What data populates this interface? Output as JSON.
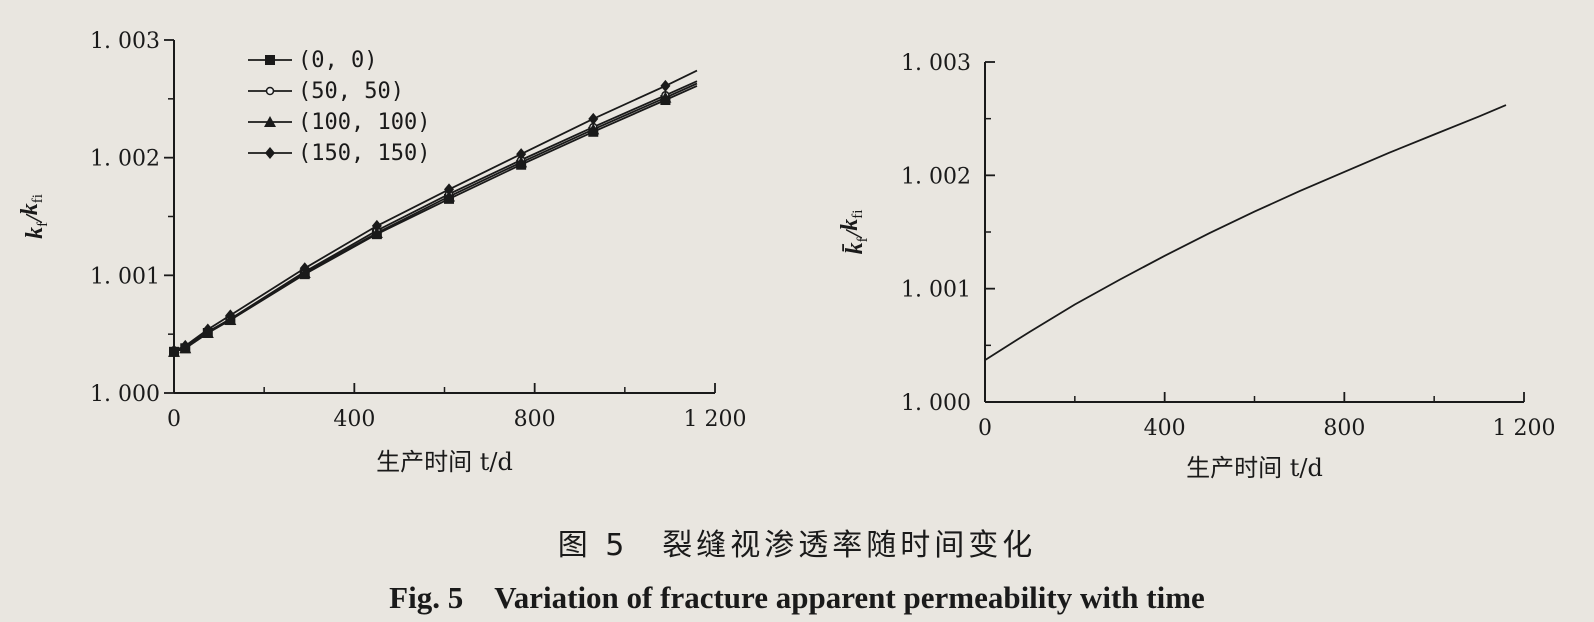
{
  "figure": {
    "caption_cn": "图 5　裂缝视渗透率随时间变化",
    "caption_en": "Fig. 5　Variation of fracture apparent permeability with time"
  },
  "chart_data": [
    {
      "type": "line",
      "title": "",
      "xlabel": "生产时间 t/d",
      "ylabel": "k_f / k_fi",
      "ylabel_main": "k",
      "ylabel_sub1": "f",
      "ylabel_slash": "/",
      "ylabel_sub2": "fi",
      "xlim": [
        0,
        1200
      ],
      "ylim": [
        1.0,
        1.003
      ],
      "xticks": [
        0,
        400,
        800,
        1200
      ],
      "xtick_labels": [
        "0",
        "400",
        "800",
        "1 200"
      ],
      "yticks": [
        1.0,
        1.001,
        1.002,
        1.003
      ],
      "ytick_labels": [
        "1. 000",
        "1. 001",
        "1. 002",
        "1. 003"
      ],
      "legend_position": "top-left",
      "grid": false,
      "series": [
        {
          "name": "(0, 0)",
          "marker": "square",
          "color": "#1a1a1a",
          "x": [
            0,
            25,
            75,
            125,
            290,
            450,
            610,
            770,
            930,
            1090,
            1160
          ],
          "y": [
            1.00035,
            1.00038,
            1.00051,
            1.00062,
            1.00101,
            1.00135,
            1.00165,
            1.00194,
            1.00222,
            1.00249,
            1.00261
          ]
        },
        {
          "name": "(50, 50)",
          "marker": "circle",
          "color": "#1a1a1a",
          "x": [
            0,
            25,
            75,
            125,
            290,
            450,
            610,
            770,
            930,
            1090,
            1160
          ],
          "y": [
            1.00036,
            1.00039,
            1.00052,
            1.00063,
            1.00103,
            1.00138,
            1.00169,
            1.00198,
            1.00226,
            1.00253,
            1.00265
          ]
        },
        {
          "name": "(100, 100)",
          "marker": "triangle",
          "color": "#1a1a1a",
          "x": [
            0,
            25,
            75,
            125,
            290,
            450,
            610,
            770,
            930,
            1090,
            1160
          ],
          "y": [
            1.00035,
            1.00038,
            1.00051,
            1.00062,
            1.00102,
            1.00136,
            1.00167,
            1.00196,
            1.00224,
            1.00251,
            1.00263
          ]
        },
        {
          "name": "(150, 150)",
          "marker": "diamond",
          "color": "#1a1a1a",
          "x": [
            0,
            25,
            75,
            125,
            290,
            450,
            610,
            770,
            930,
            1090,
            1160
          ],
          "y": [
            1.00036,
            1.0004,
            1.00054,
            1.00066,
            1.00106,
            1.00142,
            1.00173,
            1.00203,
            1.00233,
            1.00261,
            1.00274
          ]
        }
      ]
    },
    {
      "type": "line",
      "title": "",
      "xlabel": "生产时间 t/d",
      "ylabel": "k̄_f / k_fi",
      "ylabel_main": "k̄",
      "ylabel_sub1": "f",
      "ylabel_slash": "/",
      "ylabel_sub2": "fi",
      "xlim": [
        0,
        1200
      ],
      "ylim": [
        1.0,
        1.003
      ],
      "xticks": [
        0,
        400,
        800,
        1200
      ],
      "xtick_labels": [
        "0",
        "400",
        "800",
        "1 200"
      ],
      "yticks": [
        1.0,
        1.001,
        1.002,
        1.003
      ],
      "ytick_labels": [
        "1. 000",
        "1. 001",
        "1. 002",
        "1. 003"
      ],
      "grid": false,
      "series": [
        {
          "marker": "none",
          "color": "#1a1a1a",
          "x": [
            0,
            100,
            200,
            300,
            400,
            500,
            600,
            700,
            800,
            900,
            1000,
            1100,
            1160
          ],
          "y": [
            1.00037,
            1.00062,
            1.00086,
            1.00108,
            1.00129,
            1.00149,
            1.00168,
            1.00186,
            1.00203,
            1.0022,
            1.00236,
            1.00252,
            1.00262
          ]
        }
      ]
    }
  ]
}
